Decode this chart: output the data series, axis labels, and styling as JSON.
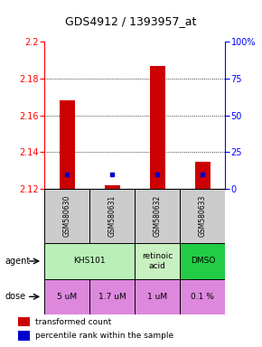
{
  "title": "GDS4912 / 1393957_at",
  "samples": [
    "GSM580630",
    "GSM580631",
    "GSM580632",
    "GSM580633"
  ],
  "bar_bottoms": [
    2.12,
    2.12,
    2.12,
    2.12
  ],
  "bar_tops": [
    2.168,
    2.122,
    2.187,
    2.135
  ],
  "percentile_ranks": [
    10,
    10,
    10,
    10
  ],
  "ylim": [
    2.12,
    2.2
  ],
  "yticks_left": [
    2.12,
    2.14,
    2.16,
    2.18,
    2.2
  ],
  "ytick_left_labels": [
    "2.12",
    "2.14",
    "2.16",
    "2.18",
    "2.2"
  ],
  "yticks_right": [
    0,
    25,
    50,
    75,
    100
  ],
  "ytick_right_labels": [
    "0",
    "25",
    "50",
    "75",
    "100%"
  ],
  "agent_info": [
    {
      "col": 0,
      "span": 2,
      "text": "KHS101",
      "color": "#b8f0b8"
    },
    {
      "col": 2,
      "span": 1,
      "text": "retinoic\nacid",
      "color": "#c8f0c0"
    },
    {
      "col": 3,
      "span": 1,
      "text": "DMSO",
      "color": "#22cc44"
    }
  ],
  "dose_labels": [
    "5 uM",
    "1.7 uM",
    "1 uM",
    "0.1 %"
  ],
  "dose_color": "#dd88dd",
  "bar_color": "#cc0000",
  "blue_color": "#0000cc",
  "sample_bg": "#cccccc",
  "title_fontsize": 9
}
